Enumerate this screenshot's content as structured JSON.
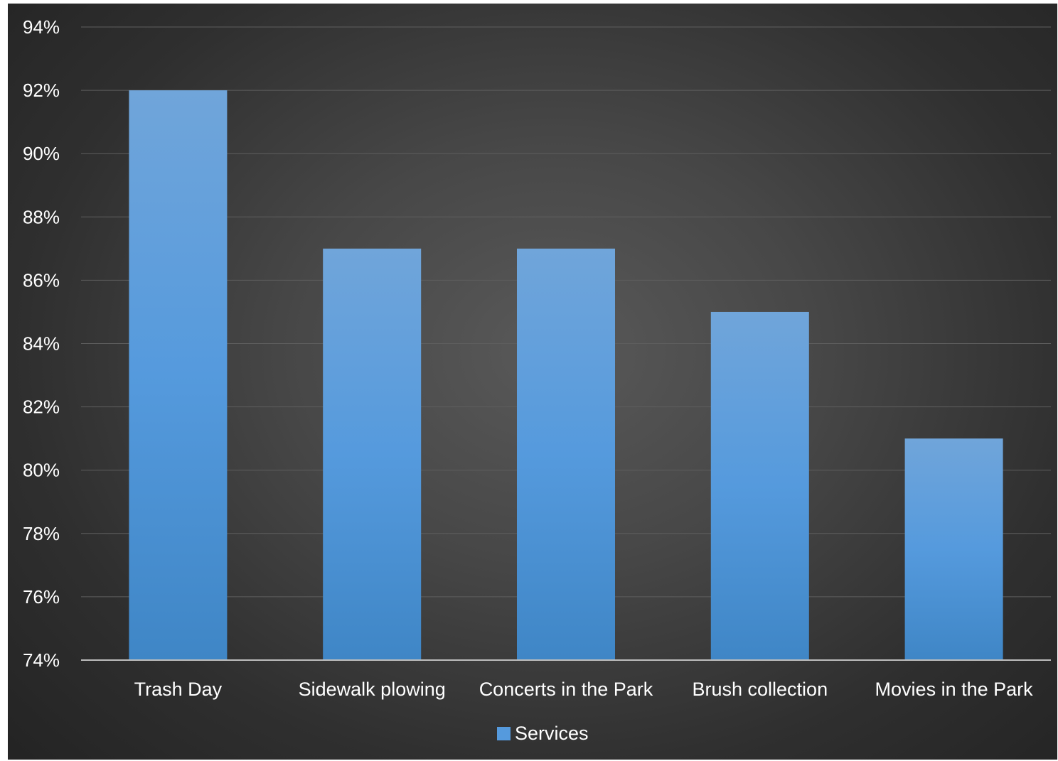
{
  "chart_data": {
    "type": "bar",
    "categories": [
      "Trash Day",
      "Sidewalk plowing",
      "Concerts in the Park",
      "Brush collection",
      "Movies in the Park"
    ],
    "series": [
      {
        "name": "Services",
        "values": [
          92,
          87,
          87,
          85,
          81
        ]
      }
    ],
    "value_format": "percent",
    "ylim": [
      74,
      94
    ],
    "y_ticks": [
      "74%",
      "76%",
      "78%",
      "80%",
      "82%",
      "84%",
      "86%",
      "88%",
      "90%",
      "92%",
      "94%"
    ],
    "title": "",
    "xlabel": "",
    "ylabel": "",
    "grid": true,
    "legend_position": "bottom",
    "colors": {
      "bar_top": "#70a5da",
      "bar_mid": "#559add",
      "bar_bottom": "#3f86c6",
      "background": "#3a3a3a"
    }
  }
}
